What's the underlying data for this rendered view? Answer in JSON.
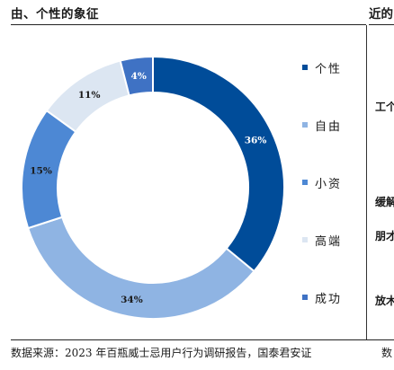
{
  "panel_title": "由、个性的象征",
  "right_panel": {
    "title": "近的",
    "fragments": [
      "工个",
      "缓解",
      "朋才",
      "放木"
    ],
    "source_fragment": "数"
  },
  "source": "数据来源：2023 年百瓶威士忌用户行为调研报告，国泰君安证",
  "colors": {
    "个性": "#004c99",
    "自由": "#8fb4e3",
    "小资": "#4d88d4",
    "高端": "#dce6f2",
    "成功": "#3f72c4"
  },
  "chart_data": {
    "type": "pie",
    "donut": true,
    "title": "",
    "categories": [
      "个性",
      "自由",
      "小资",
      "高端",
      "成功"
    ],
    "values": [
      36,
      34,
      15,
      11,
      4
    ],
    "labels": [
      "36%",
      "34%",
      "15%",
      "11%",
      "4%"
    ],
    "legend_position": "right"
  }
}
